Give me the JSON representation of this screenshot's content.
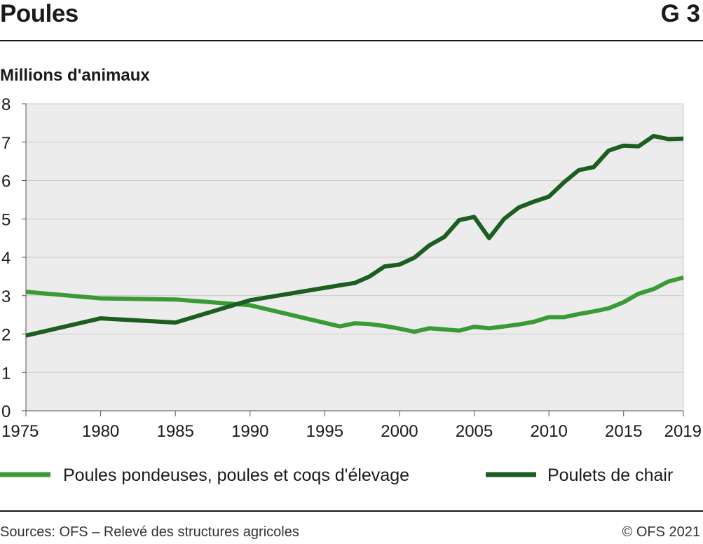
{
  "header": {
    "title": "Poules",
    "code": "G 3"
  },
  "footer": {
    "source": "Sources: OFS – Relevé des structures agricoles",
    "copyright": "© OFS 2021"
  },
  "chart_data": {
    "type": "line",
    "title": "Poules",
    "ylabel": "Millions d'animaux",
    "xlabel": "",
    "xlim": [
      1975,
      2019
    ],
    "ylim": [
      0,
      8
    ],
    "grid": true,
    "legend_position": "bottom",
    "x_ticks": [
      "1975",
      "1980",
      "1985",
      "1990",
      "1995",
      "2000",
      "2005",
      "2010",
      "2015",
      "2019"
    ],
    "y_ticks": [
      "0",
      "1",
      "2",
      "3",
      "4",
      "5",
      "6",
      "7",
      "8"
    ],
    "series": [
      {
        "name": "Poules pondeuses, poules et coqs d'élevage",
        "color": "#3a9a35",
        "x": [
          1975,
          1980,
          1985,
          1990,
          1996,
          1997,
          1998,
          1999,
          2000,
          2001,
          2002,
          2003,
          2004,
          2005,
          2006,
          2007,
          2008,
          2009,
          2010,
          2011,
          2012,
          2013,
          2014,
          2015,
          2016,
          2017,
          2018,
          2019
        ],
        "values": [
          3.1,
          2.93,
          2.9,
          2.75,
          2.2,
          2.28,
          2.26,
          2.21,
          2.14,
          2.06,
          2.15,
          2.12,
          2.09,
          2.19,
          2.15,
          2.2,
          2.25,
          2.32,
          2.44,
          2.44,
          2.52,
          2.59,
          2.67,
          2.83,
          3.05,
          3.17,
          3.37,
          3.47
        ]
      },
      {
        "name": "Poulets de chair",
        "color": "#1b5e20",
        "x": [
          1975,
          1980,
          1985,
          1990,
          1996,
          1997,
          1998,
          1999,
          2000,
          2001,
          2002,
          2003,
          2004,
          2005,
          2006,
          2007,
          2008,
          2009,
          2010,
          2011,
          2012,
          2013,
          2014,
          2015,
          2016,
          2017,
          2018,
          2019
        ],
        "values": [
          1.96,
          2.41,
          2.3,
          2.88,
          3.27,
          3.33,
          3.5,
          3.76,
          3.81,
          3.99,
          4.31,
          4.53,
          4.97,
          5.05,
          4.5,
          5.0,
          5.3,
          5.45,
          5.58,
          5.95,
          6.27,
          6.35,
          6.78,
          6.91,
          6.89,
          7.16,
          7.08,
          7.09
        ]
      }
    ]
  }
}
